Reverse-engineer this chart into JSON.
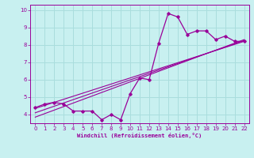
{
  "xlabel": "Windchill (Refroidissement éolien,°C)",
  "bg_color": "#c8f0f0",
  "line_color": "#990099",
  "grid_color": "#aadddd",
  "xlim": [
    -0.5,
    22.5
  ],
  "ylim": [
    3.5,
    10.3
  ],
  "xticks": [
    0,
    1,
    2,
    3,
    4,
    5,
    6,
    7,
    8,
    9,
    10,
    11,
    12,
    13,
    14,
    15,
    16,
    17,
    18,
    19,
    20,
    21,
    22
  ],
  "yticks": [
    4,
    5,
    6,
    7,
    8,
    9,
    10
  ],
  "data_x": [
    0,
    1,
    2,
    3,
    4,
    5,
    6,
    7,
    8,
    9,
    10,
    11,
    12,
    13,
    14,
    15,
    16,
    17,
    18,
    19,
    20,
    21,
    22
  ],
  "data_y": [
    4.4,
    4.6,
    4.7,
    4.6,
    4.2,
    4.2,
    4.2,
    3.7,
    4.0,
    3.7,
    5.2,
    6.1,
    6.0,
    8.1,
    9.8,
    9.6,
    8.6,
    8.8,
    8.8,
    8.3,
    8.5,
    8.2,
    8.2
  ],
  "trend1_x": [
    0,
    22
  ],
  "trend1_y": [
    4.35,
    8.2
  ],
  "trend2_x": [
    0,
    22
  ],
  "trend2_y": [
    4.1,
    8.25
  ],
  "trend3_x": [
    0,
    22
  ],
  "trend3_y": [
    3.85,
    8.3
  ]
}
